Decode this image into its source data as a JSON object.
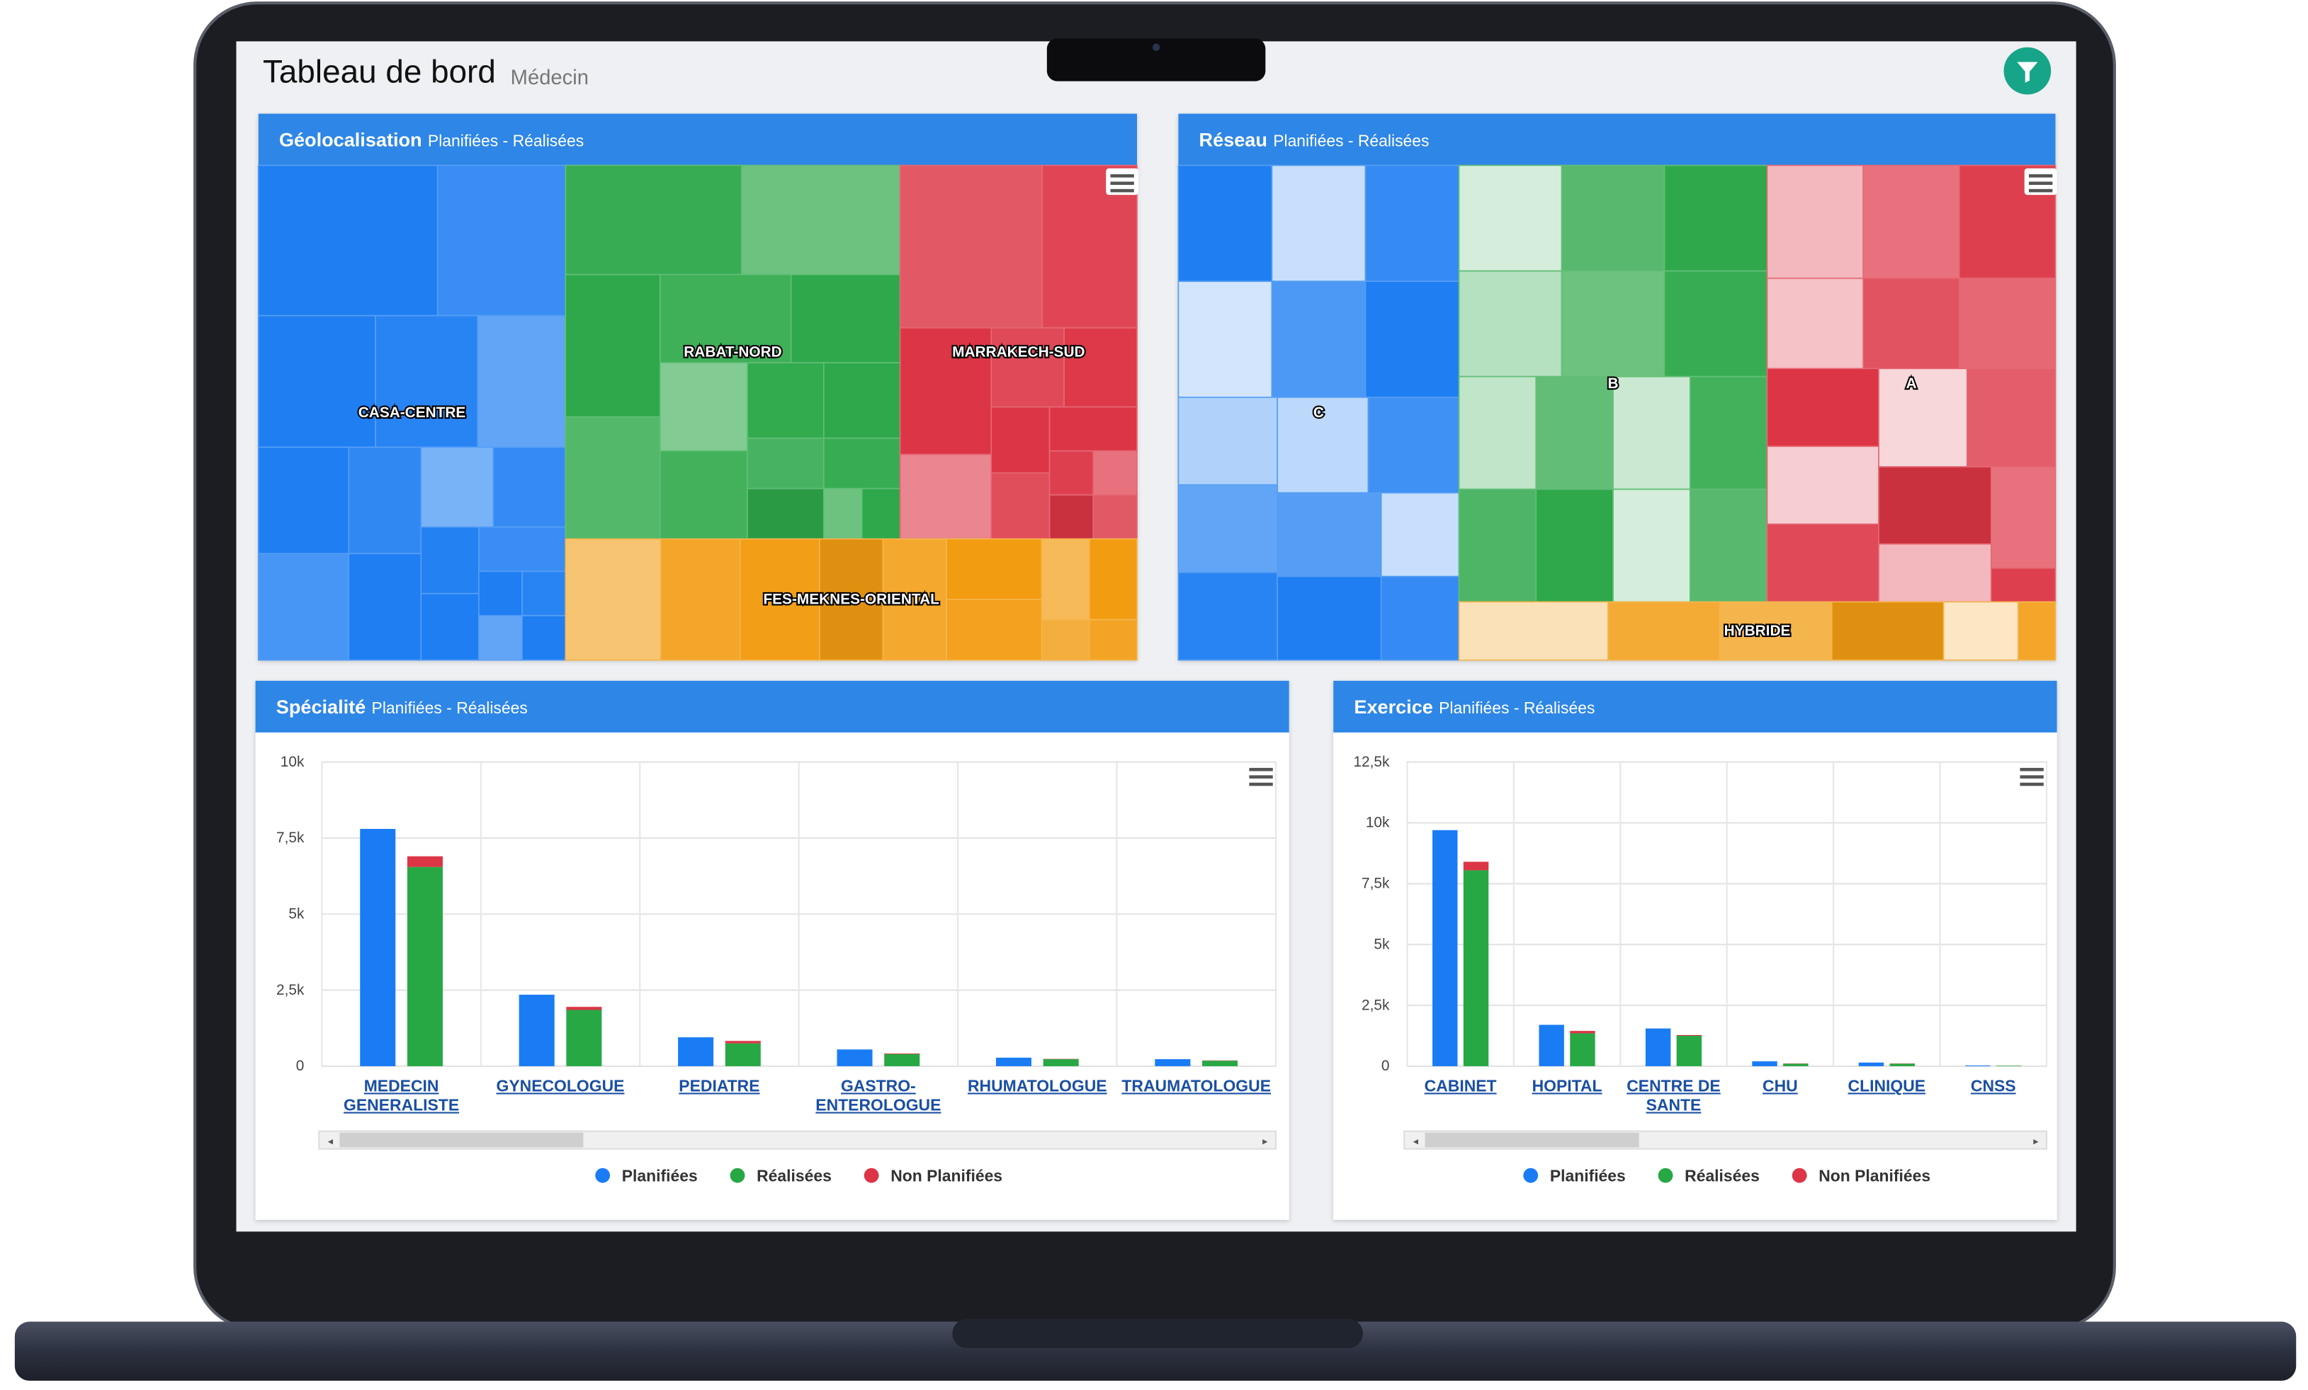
{
  "header": {
    "title": "Tableau de bord",
    "subtitle": "Médecin"
  },
  "chart_data": [
    {
      "type": "treemap",
      "title": "Géolocalisation",
      "subtitle": "Planifiées - Réalisées",
      "groups": [
        {
          "name": "CASA-CENTRE",
          "color": "#1e7ef2",
          "values": [
            14,
            10,
            8,
            7,
            6,
            5,
            5,
            4,
            4,
            3,
            3,
            2,
            2,
            2,
            1,
            1,
            1,
            1
          ]
        },
        {
          "name": "RABAT-NORD",
          "color": "#2ea84a",
          "values": [
            10,
            9,
            7,
            6,
            6,
            5,
            4,
            4,
            3,
            3,
            2,
            2,
            2,
            1,
            1
          ]
        },
        {
          "name": "MARRAKECH-SUD",
          "color": "#dc3545",
          "values": [
            12,
            8,
            6,
            4,
            3,
            3,
            2,
            2,
            2,
            1,
            1,
            1,
            1
          ]
        },
        {
          "name": "FES-MEKNES-ORIENTAL",
          "color": "#f29c12",
          "values": [
            6,
            5,
            5,
            4,
            4,
            3,
            3,
            2,
            2,
            1,
            1
          ]
        }
      ]
    },
    {
      "type": "treemap",
      "title": "Réseau",
      "subtitle": "Planifiées - Réalisées",
      "groups": [
        {
          "name": "C",
          "color": "#1e7ef2",
          "values": [
            5,
            5,
            5,
            5,
            5,
            5,
            4,
            4,
            4,
            4,
            4,
            4,
            4,
            3,
            3
          ]
        },
        {
          "name": "B",
          "color": "#2ea84a",
          "values": [
            5,
            5,
            5,
            5,
            5,
            5,
            4,
            4,
            4,
            4,
            4,
            4,
            4,
            4
          ]
        },
        {
          "name": "A",
          "color": "#dc3545",
          "values": [
            5,
            5,
            5,
            4,
            4,
            4,
            4,
            4,
            4,
            4,
            4,
            4,
            3,
            3,
            1
          ]
        },
        {
          "name": "HYBRIDE",
          "color": "#f29c12",
          "values": [
            4,
            3,
            3,
            3,
            2,
            1
          ]
        }
      ]
    },
    {
      "type": "bar",
      "title": "Spécialité",
      "subtitle": "Planifiées - Réalisées",
      "categories": [
        "MEDECIN GENERALISTE",
        "GYNECOLOGUE",
        "PEDIATRE",
        "GASTRO-ENTEROLOGUE",
        "RHUMATOLOGUE",
        "TRAUMATOLOGUE"
      ],
      "series": [
        {
          "name": "Planifiées",
          "color": "#1a7cf5",
          "values": [
            7800,
            2350,
            950,
            550,
            280,
            230
          ]
        },
        {
          "name": "Réalisées",
          "color": "#27a844",
          "values": [
            6550,
            1850,
            750,
            400,
            230,
            180
          ]
        },
        {
          "name": "Non Planifiées",
          "color": "#dc3545",
          "values": [
            350,
            100,
            80,
            20,
            10,
            10
          ],
          "stacked": true
        }
      ],
      "ylim": [
        0,
        10000
      ],
      "yticks": [
        0,
        {
          "value": 2500,
          "label": "2,5k"
        },
        {
          "value": 5000,
          "label": "5k"
        },
        {
          "value": 7500,
          "label": "7,5k"
        },
        {
          "value": 10000,
          "label": "10k"
        }
      ],
      "grid": true
    },
    {
      "type": "bar",
      "title": "Exercice",
      "subtitle": "Planifiées - Réalisées",
      "categories": [
        "CABINET",
        "HOPITAL",
        "CENTRE DE SANTE",
        "CHU",
        "CLINIQUE",
        "CNSS"
      ],
      "series": [
        {
          "name": "Planifiées",
          "color": "#1a7cf5",
          "values": [
            9700,
            1700,
            1550,
            200,
            150,
            30
          ]
        },
        {
          "name": "Réalisées",
          "color": "#27a844",
          "values": [
            8050,
            1350,
            1250,
            100,
            100,
            20
          ]
        },
        {
          "name": "Non Planifiées",
          "color": "#dc3545",
          "values": [
            350,
            100,
            30,
            10,
            10,
            0
          ],
          "stacked": true
        }
      ],
      "ylim": [
        0,
        12500
      ],
      "yticks": [
        0,
        {
          "value": 2500,
          "label": "2,5k"
        },
        {
          "value": 5000,
          "label": "5k"
        },
        {
          "value": 7500,
          "label": "7,5k"
        },
        {
          "value": 10000,
          "label": "10k"
        },
        {
          "value": 12500,
          "label": "12,5k"
        }
      ],
      "grid": true
    }
  ]
}
